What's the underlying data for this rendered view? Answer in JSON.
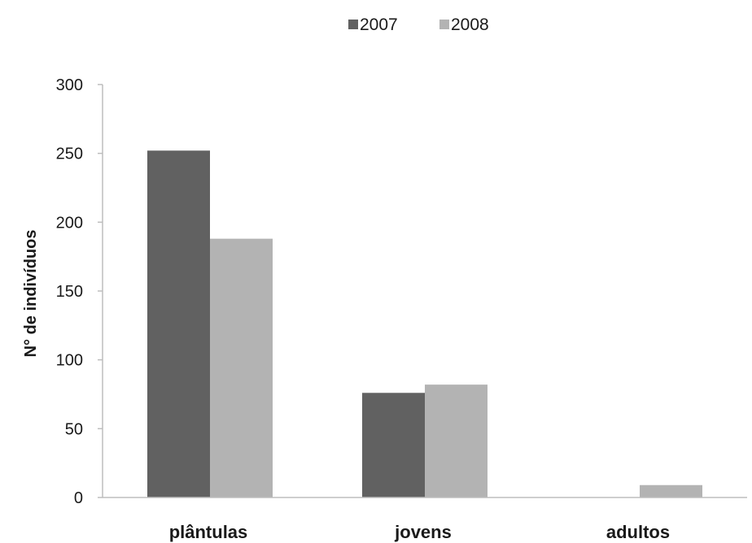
{
  "chart_data": {
    "type": "bar",
    "categories": [
      "plântulas",
      "jovens",
      "adultos"
    ],
    "series": [
      {
        "name": "2007",
        "values": [
          252,
          76,
          0
        ],
        "color": "#616161"
      },
      {
        "name": "2008",
        "values": [
          188,
          82,
          9
        ],
        "color": "#b3b3b3"
      }
    ],
    "ylabel": "N° de indivíduos",
    "ylim": [
      0,
      300
    ],
    "yticks": [
      0,
      50,
      100,
      150,
      200,
      250,
      300
    ],
    "grid": false,
    "legend_position": "top-center"
  }
}
